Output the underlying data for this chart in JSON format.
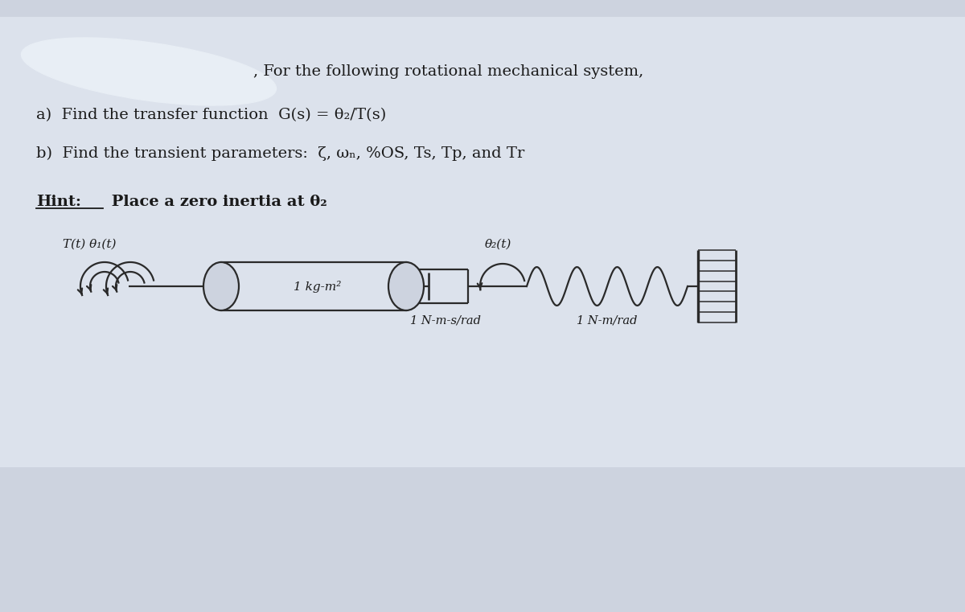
{
  "bg_color": "#cdd3df",
  "blob_color": "#e8eef5",
  "text_color": "#1a1a1a",
  "line_color": "#2a2a2a",
  "title_line1": ", For the following rotational mechanical system,",
  "title_line2a": "a)  Find the transfer function  G(s) = ",
  "title_line2b": "θ₂/T(s)",
  "title_line3a": "b)  Find the transient parameters:  ζ, ω",
  "title_line3b": "n",
  "title_line3c": ", %OS, Ts, Tp, and Tr",
  "hint_bold": "Hint:",
  "hint_rest": " Place a zero inertia at θ₂",
  "label_T": "T(t) θ₁(t)",
  "label_inertia": "1 kg-m²",
  "label_damper": "1 N-m-s/rad",
  "label_spring": "1 N-m/rad",
  "label_theta2": "θ₂(t)"
}
